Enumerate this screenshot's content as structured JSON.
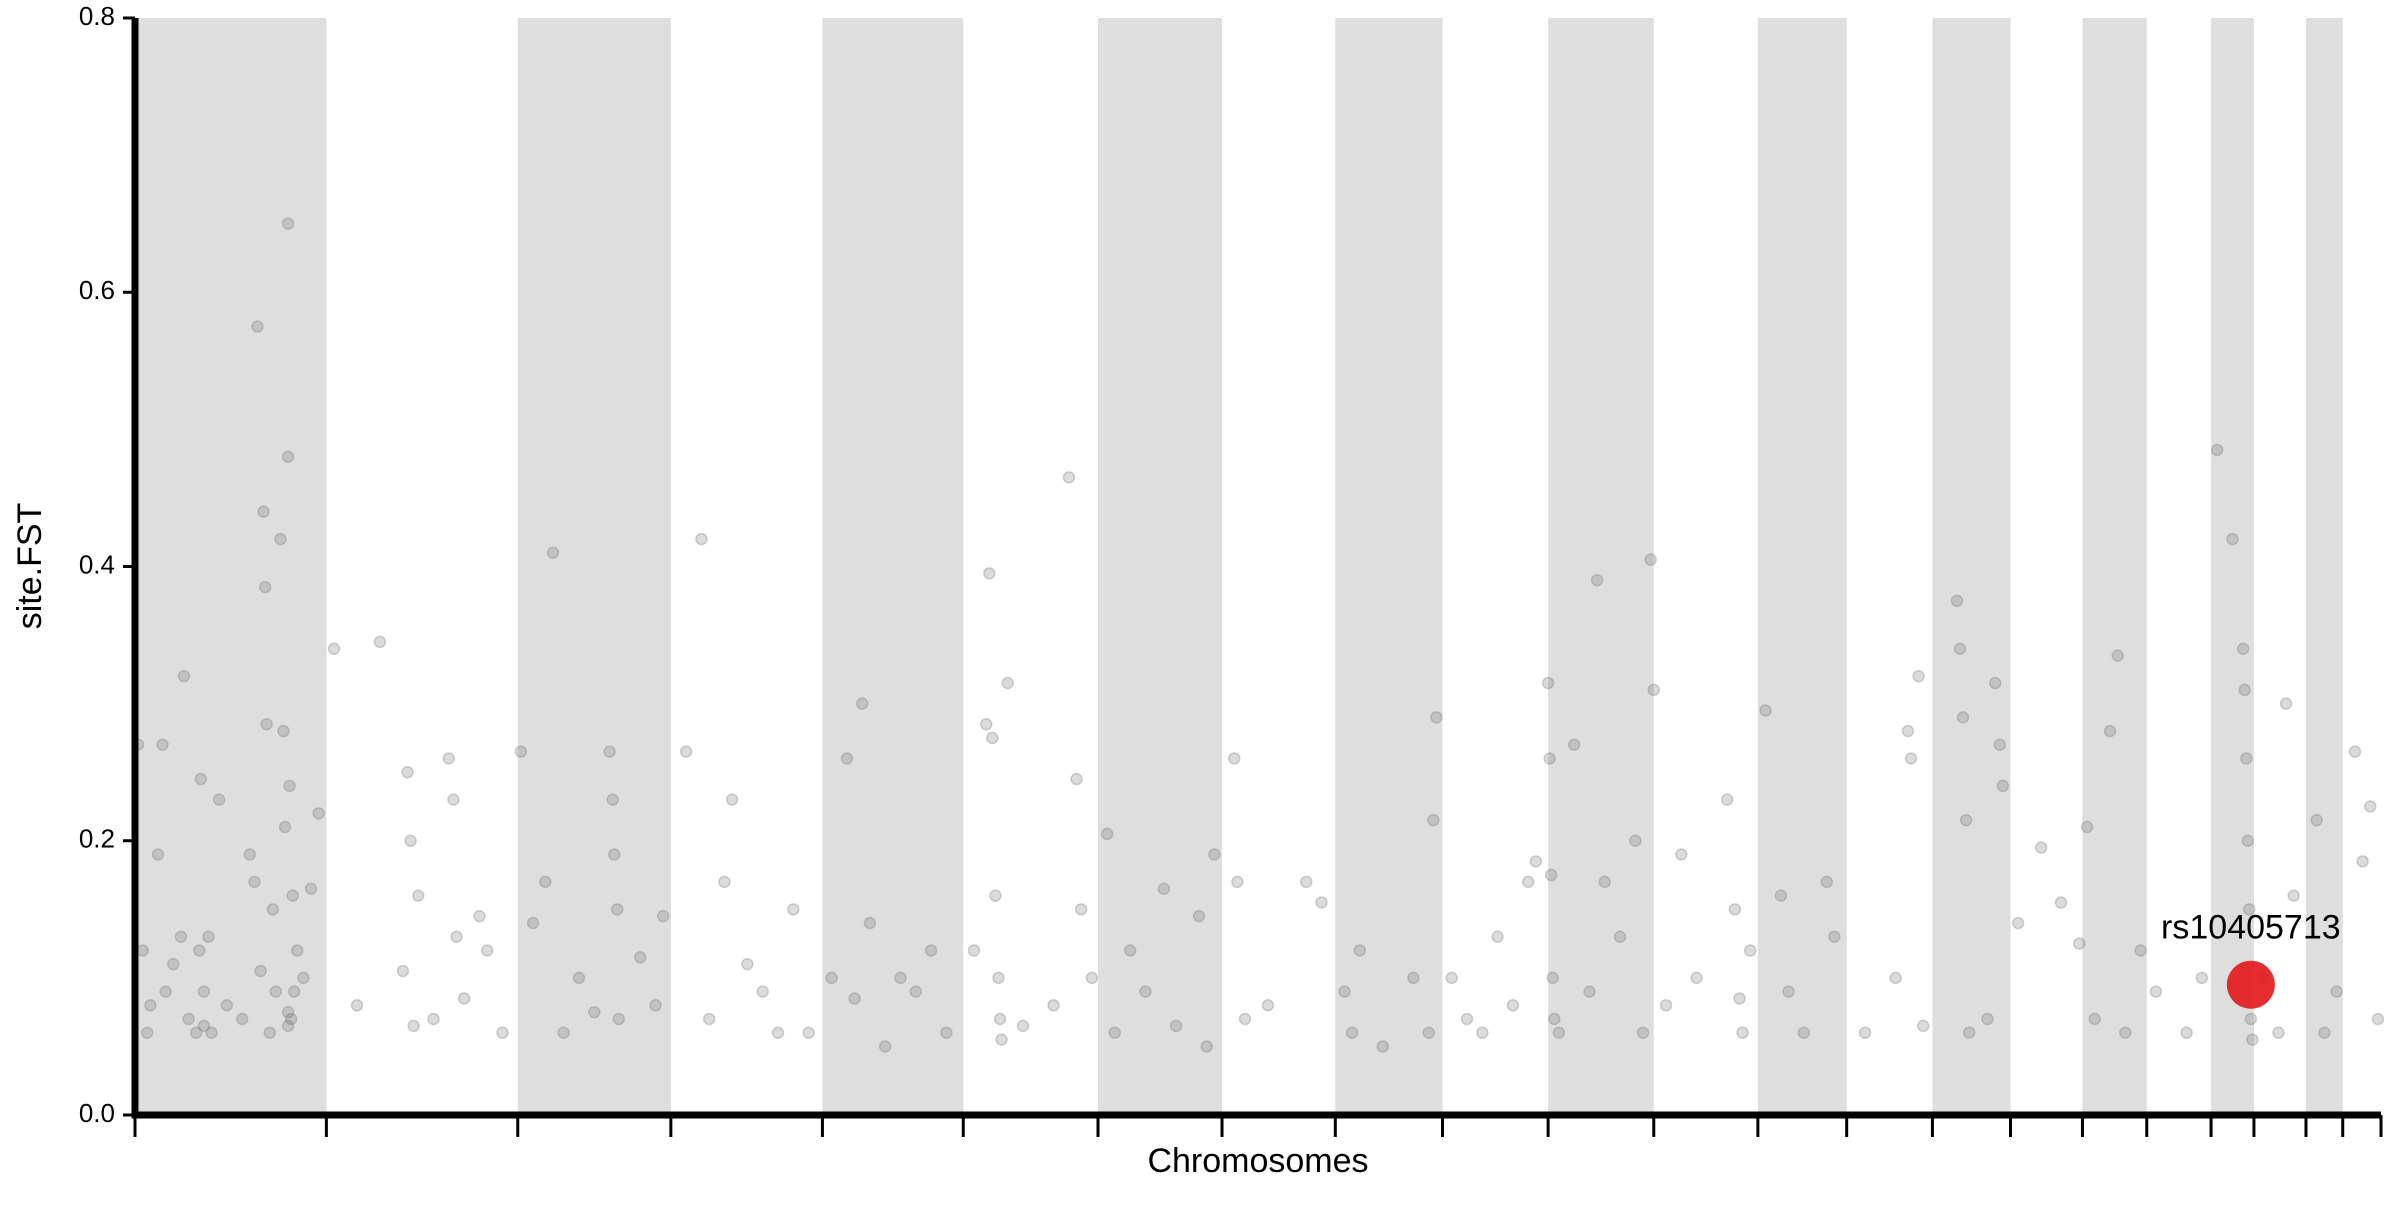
{
  "chart_data": {
    "type": "scatter",
    "x_label": "Chromosomes",
    "y_label": "site.FST",
    "xlim": [
      0,
      1467
    ],
    "xticks": [
      0,
      125,
      250,
      350,
      449,
      541,
      629,
      710,
      784,
      854,
      923,
      992,
      1060,
      1118,
      1174,
      1225,
      1272,
      1314,
      1356,
      1384,
      1418,
      1442,
      1467
    ],
    "ylim": [
      0,
      0.8
    ],
    "yticks": [
      {
        "value": 0,
        "label": "0.0"
      },
      0.2,
      0.4,
      0.6,
      0.8
    ],
    "band_color": "#dedede",
    "color": "#707070",
    "x": [
      2,
      5,
      8,
      10,
      15,
      18,
      20,
      25,
      30,
      32,
      35,
      40,
      42,
      43,
      45,
      48,
      50,
      55,
      60,
      70,
      75,
      78,
      80,
      82,
      84,
      85,
      86,
      88,
      90,
      92,
      95,
      97,
      98,
      100,
      100,
      101,
      102,
      103,
      104,
      106,
      110,
      115,
      120,
      45,
      100,
      100,
      130,
      145,
      160,
      175,
      178,
      180,
      182,
      185,
      195,
      205,
      208,
      210,
      215,
      225,
      230,
      240,
      252,
      260,
      268,
      273,
      280,
      290,
      300,
      310,
      312,
      313,
      315,
      316,
      330,
      340,
      345,
      360,
      370,
      375,
      385,
      390,
      400,
      410,
      420,
      430,
      440,
      455,
      465,
      470,
      475,
      480,
      490,
      500,
      510,
      520,
      530,
      548,
      556,
      558,
      560,
      562,
      564,
      565,
      566,
      570,
      580,
      600,
      610,
      615,
      618,
      625,
      635,
      640,
      650,
      660,
      672,
      680,
      695,
      700,
      705,
      718,
      720,
      725,
      740,
      765,
      775,
      790,
      795,
      800,
      815,
      835,
      845,
      850,
      848,
      860,
      870,
      880,
      890,
      900,
      910,
      915,
      923,
      924,
      925,
      926,
      927,
      930,
      940,
      950,
      955,
      960,
      970,
      980,
      985,
      990,
      992,
      1000,
      1010,
      1020,
      1040,
      1045,
      1048,
      1050,
      1055,
      1065,
      1075,
      1080,
      1090,
      1105,
      1110,
      1130,
      1150,
      1158,
      1160,
      1165,
      1168,
      1190,
      1192,
      1194,
      1196,
      1198,
      1210,
      1215,
      1218,
      1220,
      1230,
      1245,
      1258,
      1270,
      1275,
      1280,
      1290,
      1295,
      1300,
      1310,
      1320,
      1340,
      1350,
      1360,
      1370,
      1377,
      1378,
      1379,
      1380,
      1381,
      1382,
      1383,
      1390,
      1400,
      1405,
      1410,
      1425,
      1430,
      1438,
      1450,
      1455,
      1460,
      1465
    ],
    "values": [
      0.27,
      0.12,
      0.06,
      0.08,
      0.19,
      0.27,
      0.09,
      0.11,
      0.13,
      0.32,
      0.07,
      0.06,
      0.12,
      0.245,
      0.09,
      0.13,
      0.06,
      0.23,
      0.08,
      0.07,
      0.19,
      0.17,
      0.575,
      0.105,
      0.44,
      0.385,
      0.285,
      0.06,
      0.15,
      0.09,
      0.42,
      0.28,
      0.21,
      0.65,
      0.48,
      0.24,
      0.07,
      0.16,
      0.09,
      0.12,
      0.1,
      0.165,
      0.22,
      0.065,
      0.065,
      0.075,
      0.34,
      0.08,
      0.345,
      0.105,
      0.25,
      0.2,
      0.065,
      0.16,
      0.07,
      0.26,
      0.23,
      0.13,
      0.085,
      0.145,
      0.12,
      0.06,
      0.265,
      0.14,
      0.17,
      0.41,
      0.06,
      0.1,
      0.075,
      0.265,
      0.23,
      0.19,
      0.15,
      0.07,
      0.115,
      0.08,
      0.145,
      0.265,
      0.42,
      0.07,
      0.17,
      0.23,
      0.11,
      0.09,
      0.06,
      0.15,
      0.06,
      0.1,
      0.26,
      0.085,
      0.3,
      0.14,
      0.05,
      0.1,
      0.09,
      0.12,
      0.06,
      0.12,
      0.285,
      0.395,
      0.275,
      0.16,
      0.1,
      0.07,
      0.055,
      0.315,
      0.065,
      0.08,
      0.465,
      0.245,
      0.15,
      0.1,
      0.205,
      0.06,
      0.12,
      0.09,
      0.165,
      0.065,
      0.145,
      0.05,
      0.19,
      0.26,
      0.17,
      0.07,
      0.08,
      0.17,
      0.155,
      0.09,
      0.06,
      0.12,
      0.05,
      0.1,
      0.06,
      0.29,
      0.215,
      0.1,
      0.07,
      0.06,
      0.13,
      0.08,
      0.17,
      0.185,
      0.315,
      0.26,
      0.175,
      0.1,
      0.07,
      0.06,
      0.27,
      0.09,
      0.39,
      0.17,
      0.13,
      0.2,
      0.06,
      0.405,
      0.31,
      0.08,
      0.19,
      0.1,
      0.23,
      0.15,
      0.085,
      0.06,
      0.12,
      0.295,
      0.16,
      0.09,
      0.06,
      0.17,
      0.13,
      0.06,
      0.1,
      0.28,
      0.26,
      0.32,
      0.065,
      0.375,
      0.34,
      0.29,
      0.215,
      0.06,
      0.07,
      0.315,
      0.27,
      0.24,
      0.14,
      0.195,
      0.155,
      0.125,
      0.21,
      0.07,
      0.28,
      0.335,
      0.06,
      0.12,
      0.09,
      0.06,
      0.1,
      0.485,
      0.42,
      0.34,
      0.31,
      0.26,
      0.2,
      0.15,
      0.07,
      0.055,
      0.1,
      0.06,
      0.3,
      0.16,
      0.215,
      0.06,
      0.09,
      0.265,
      0.185,
      0.225,
      0.07
    ],
    "highlight": {
      "label": "rs10405713",
      "x": 1382,
      "y": 0.095,
      "color": "#e31a1c"
    }
  }
}
